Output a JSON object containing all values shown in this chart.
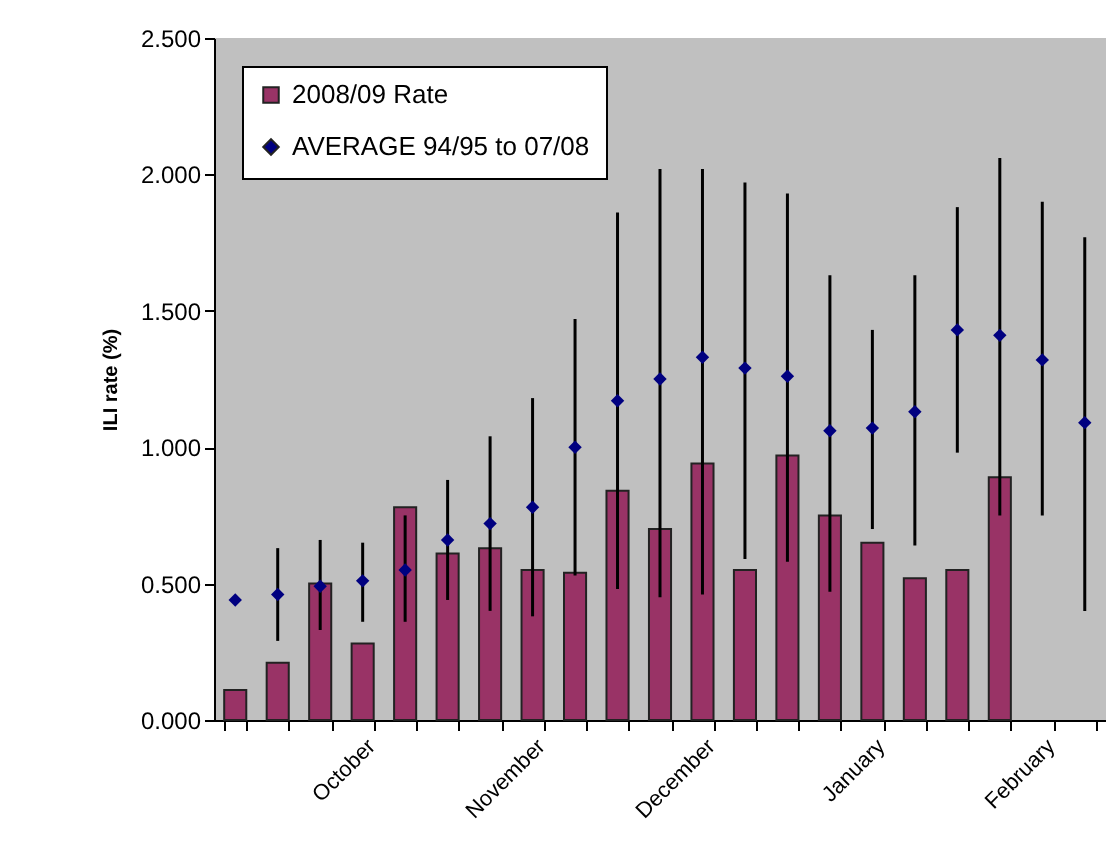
{
  "chart_data": {
    "type": "bar",
    "ylabel": "ILI rate (%)",
    "categories": [
      null,
      null,
      null,
      "October",
      null,
      null,
      null,
      "November",
      null,
      null,
      null,
      "December",
      null,
      null,
      null,
      "January",
      null,
      null,
      null,
      "February",
      null
    ],
    "ylim": [
      0,
      2.5
    ],
    "yticks": [
      {
        "value": 0,
        "label": "0.000"
      },
      {
        "value": 0.5,
        "label": "0.500"
      },
      {
        "value": 1,
        "label": "1.000"
      },
      {
        "value": 1.5,
        "label": "1.500"
      },
      {
        "value": 2,
        "label": "2.000"
      },
      {
        "value": 2.5,
        "label": "2.500"
      }
    ],
    "grid": false,
    "legend": "top left",
    "series": [
      {
        "name": "2008/09 Rate",
        "color": "#993366",
        "values": [
          0.11,
          0.21,
          0.5,
          0.28,
          0.78,
          0.61,
          0.63,
          0.55,
          0.54,
          0.84,
          0.7,
          0.94,
          0.55,
          0.97,
          0.75,
          0.65,
          0.52,
          0.55,
          0.89,
          null,
          null
        ]
      },
      {
        "name": "AVERAGE 94/95 to 07/08",
        "type": "scatter",
        "marker": "diamond",
        "color": "#000080",
        "values": [
          0.44,
          0.46,
          0.49,
          0.51,
          0.55,
          0.66,
          0.72,
          0.78,
          1.0,
          1.17,
          1.25,
          1.33,
          1.29,
          1.26,
          1.06,
          1.07,
          1.13,
          1.43,
          1.41,
          1.32,
          1.09
        ],
        "errors": [
          null,
          [
            0.29,
            0.63
          ],
          [
            0.33,
            0.66
          ],
          [
            0.36,
            0.65
          ],
          [
            0.36,
            0.75
          ],
          [
            0.44,
            0.88
          ],
          [
            0.4,
            1.04
          ],
          [
            0.38,
            1.18
          ],
          [
            0.53,
            1.47
          ],
          [
            0.48,
            1.86
          ],
          [
            0.45,
            2.02
          ],
          [
            0.46,
            2.02
          ],
          [
            0.59,
            1.97
          ],
          [
            0.58,
            1.93
          ],
          [
            0.47,
            1.63
          ],
          [
            0.7,
            1.43
          ],
          [
            0.64,
            1.63
          ],
          [
            0.98,
            1.88
          ],
          [
            0.75,
            2.06
          ],
          [
            0.75,
            1.9
          ],
          [
            0.4,
            1.77
          ]
        ]
      }
    ]
  }
}
